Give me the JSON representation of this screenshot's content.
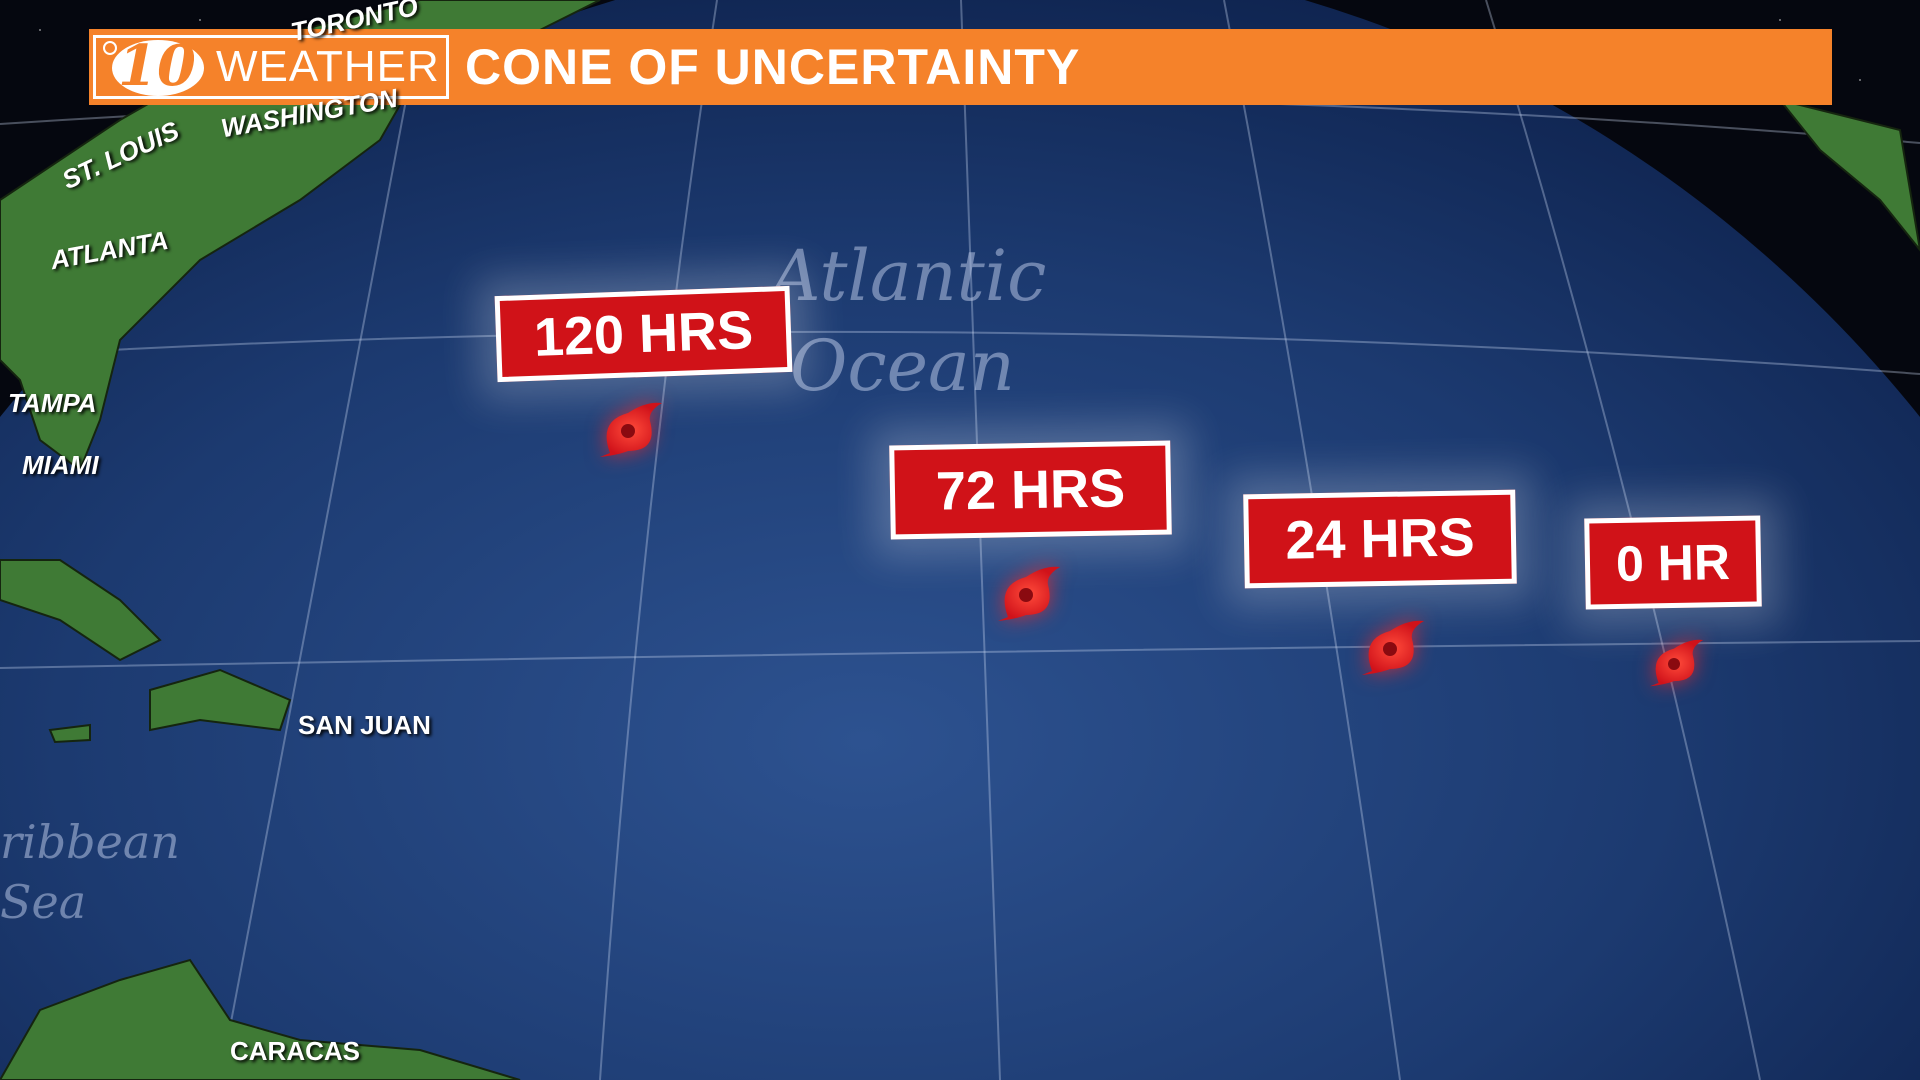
{
  "header": {
    "logo_number": "10",
    "logo_word": "WEATHER",
    "title": "CONE OF UNCERTAINTY",
    "accent_color": "#f5822a"
  },
  "map": {
    "ocean_label_line1": "Atlantic",
    "ocean_label_line2": "Ocean",
    "sea_label_line1": "ribbean",
    "sea_label_line2": "Sea",
    "cities": [
      "TORONTO",
      "WASHINGTON",
      "ST. LOUIS",
      "ATLANTA",
      "TAMPA",
      "MIAMI",
      "SAN JUAN",
      "CARACAS"
    ]
  },
  "forecast_points": [
    {
      "label": "120 HRS",
      "icon": "hurricane-icon"
    },
    {
      "label": "72 HRS",
      "icon": "hurricane-icon"
    },
    {
      "label": "24 HRS",
      "icon": "hurricane-icon"
    },
    {
      "label": "0 HR",
      "icon": "hurricane-icon"
    }
  ],
  "colors": {
    "tag_red": "#d01218",
    "ocean": "#1e3d73",
    "land": "#3f7a35"
  }
}
